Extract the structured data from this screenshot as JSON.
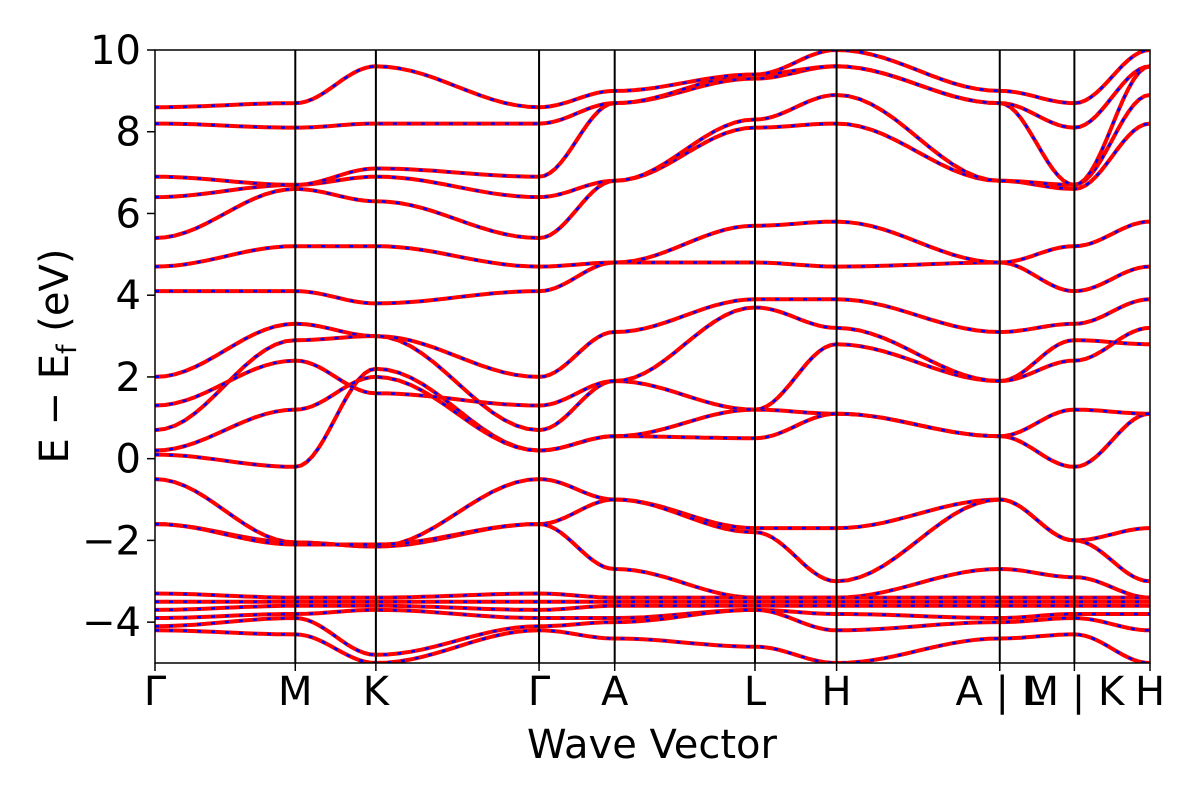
{
  "chart_data": {
    "type": "line",
    "title": "",
    "xlabel": "Wave Vector",
    "ylabel_main": "E − E",
    "ylabel_sub": "f",
    "ylabel_unit": " (eV)",
    "ylim": [
      -5,
      10
    ],
    "yticks": [
      -4,
      -2,
      0,
      2,
      4,
      6,
      8,
      10
    ],
    "ytick_labels": [
      "−4",
      "−2",
      "0",
      "2",
      "4",
      "6",
      "8",
      "10"
    ],
    "xlim": [
      0,
      100
    ],
    "kpoints": [
      {
        "x": 0,
        "label": "Γ"
      },
      {
        "x": 14.1,
        "label": "M"
      },
      {
        "x": 22.2,
        "label": "K"
      },
      {
        "x": 38.6,
        "label": "Γ"
      },
      {
        "x": 46.2,
        "label": "A"
      },
      {
        "x": 60.3,
        "label": "L"
      },
      {
        "x": 68.5,
        "label": "H"
      },
      {
        "x": 84.9,
        "label": "A | L"
      },
      {
        "x": 92.4,
        "label": "M | K"
      },
      {
        "x": 100,
        "label": "H"
      }
    ],
    "colors": {
      "bands_solid": "#ff0000",
      "bands_dashed": "#0000ff",
      "kline": "#000000"
    },
    "series": [
      {
        "name": "",
        "x": [
          0,
          14.1,
          22.2,
          38.6,
          46.2,
          60.3,
          68.5,
          84.9,
          92.4,
          100
        ],
        "y": [
          -0.5,
          -2.05,
          -2.15,
          -0.5,
          -1.0,
          -1.7,
          -1.7,
          -1.0,
          -2.0,
          -1.7
        ]
      },
      {
        "x": [
          0,
          14.1,
          22.2,
          38.6,
          46.2,
          60.3,
          68.5,
          84.9,
          92.4,
          100
        ],
        "y": [
          -1.6,
          -2.05,
          -2.15,
          -1.6,
          -1.0,
          -1.8,
          -3.0,
          -1.0,
          -2.0,
          -3.0
        ]
      },
      {
        "x": [
          0,
          14.1,
          22.2,
          38.6,
          46.2,
          60.3,
          68.5,
          84.9,
          92.4,
          100
        ],
        "y": [
          -1.6,
          -2.1,
          -2.1,
          -1.6,
          -2.7,
          -3.4,
          -3.4,
          -2.7,
          -2.9,
          -3.4
        ]
      },
      {
        "x": [
          0,
          14.1,
          22.2,
          38.6,
          46.2,
          60.3,
          68.5,
          84.9,
          92.4,
          100
        ],
        "y": [
          0.1,
          -0.2,
          2.2,
          0.2,
          0.55,
          0.5,
          1.1,
          0.55,
          -0.2,
          1.1
        ]
      },
      {
        "x": [
          0,
          14.1,
          22.2,
          38.6,
          46.2,
          60.3,
          68.5,
          84.9,
          92.4,
          100
        ],
        "y": [
          0.2,
          1.2,
          2.0,
          0.2,
          0.55,
          1.2,
          1.1,
          0.55,
          1.2,
          1.1
        ]
      },
      {
        "x": [
          0,
          14.1,
          22.2,
          38.6,
          46.2,
          60.3,
          68.5,
          84.9,
          92.4,
          100
        ],
        "y": [
          0.7,
          2.9,
          3.0,
          0.7,
          1.9,
          1.2,
          2.8,
          1.9,
          2.9,
          2.8
        ]
      },
      {
        "x": [
          0,
          14.1,
          22.2,
          38.6,
          46.2,
          60.3,
          68.5,
          84.9,
          92.4,
          100
        ],
        "y": [
          1.3,
          2.4,
          1.6,
          1.3,
          1.9,
          3.7,
          3.2,
          1.9,
          2.4,
          3.2
        ]
      },
      {
        "x": [
          0,
          14.1,
          22.2,
          38.6,
          46.2,
          60.3,
          68.5,
          84.9,
          92.4,
          100
        ],
        "y": [
          2.0,
          3.3,
          3.0,
          2.0,
          3.1,
          3.9,
          3.9,
          3.1,
          3.3,
          3.9
        ]
      },
      {
        "x": [
          0,
          14.1,
          22.2,
          38.6,
          46.2,
          60.3,
          68.5,
          84.9,
          92.4,
          100
        ],
        "y": [
          4.1,
          4.1,
          3.8,
          4.1,
          4.8,
          4.8,
          4.7,
          4.8,
          4.1,
          4.7
        ]
      },
      {
        "x": [
          0,
          14.1,
          22.2,
          38.6,
          46.2,
          60.3,
          68.5,
          84.9,
          92.4,
          100
        ],
        "y": [
          4.7,
          5.2,
          5.2,
          4.7,
          4.8,
          5.7,
          5.8,
          4.8,
          5.2,
          5.8
        ]
      },
      {
        "x": [
          0,
          14.1,
          22.2,
          38.6,
          46.2,
          60.3,
          68.5,
          84.9,
          92.4,
          100
        ],
        "y": [
          5.4,
          6.6,
          6.3,
          5.4,
          6.8,
          8.1,
          8.2,
          6.8,
          6.6,
          8.2
        ]
      },
      {
        "x": [
          0,
          14.1,
          22.2,
          38.6,
          46.2,
          60.3,
          68.5,
          84.9,
          92.4,
          100
        ],
        "y": [
          6.4,
          6.7,
          6.9,
          6.4,
          6.8,
          8.3,
          8.9,
          6.8,
          6.7,
          8.9
        ]
      },
      {
        "x": [
          0,
          14.1,
          22.2,
          38.6,
          46.2,
          60.3,
          68.5,
          84.9,
          92.4,
          100
        ],
        "y": [
          6.9,
          6.7,
          7.1,
          6.9,
          8.7,
          9.3,
          9.6,
          8.7,
          6.7,
          9.6
        ]
      },
      {
        "x": [
          0,
          14.1,
          22.2,
          38.6,
          46.2,
          60.3,
          68.5,
          84.9,
          92.4,
          100
        ],
        "y": [
          8.2,
          8.1,
          8.2,
          8.2,
          8.7,
          9.4,
          9.6,
          8.7,
          8.1,
          9.6
        ]
      },
      {
        "x": [
          0,
          14.1,
          22.2,
          38.6,
          46.2,
          60.3,
          68.5,
          84.9,
          92.4,
          100
        ],
        "y": [
          8.6,
          8.7,
          9.6,
          8.6,
          9.0,
          9.4,
          10.0,
          9.0,
          8.7,
          10.0
        ]
      },
      {
        "x": [
          0,
          14.1,
          22.2,
          38.6,
          46.2,
          60.3,
          68.5,
          84.9,
          92.4,
          100
        ],
        "y": [
          -3.3,
          -3.4,
          -3.4,
          -3.3,
          -3.4,
          -3.4,
          -3.4,
          -3.4,
          -3.4,
          -3.4
        ]
      },
      {
        "x": [
          0,
          14.1,
          22.2,
          38.6,
          46.2,
          60.3,
          68.5,
          84.9,
          92.4,
          100
        ],
        "y": [
          -3.5,
          -3.5,
          -3.5,
          -3.5,
          -3.5,
          -3.5,
          -3.5,
          -3.5,
          -3.5,
          -3.5
        ]
      },
      {
        "x": [
          0,
          14.1,
          22.2,
          38.6,
          46.2,
          60.3,
          68.5,
          84.9,
          92.4,
          100
        ],
        "y": [
          -3.7,
          -3.6,
          -3.6,
          -3.7,
          -3.6,
          -3.6,
          -3.6,
          -3.6,
          -3.6,
          -3.6
        ]
      },
      {
        "x": [
          0,
          14.1,
          22.2,
          38.6,
          46.2,
          60.3,
          68.5,
          84.9,
          92.4,
          100
        ],
        "y": [
          -3.9,
          -3.8,
          -3.7,
          -3.9,
          -3.9,
          -3.7,
          -3.8,
          -3.9,
          -3.8,
          -3.8
        ]
      },
      {
        "x": [
          0,
          14.1,
          22.2,
          38.6,
          46.2,
          60.3,
          68.5,
          84.9,
          92.4,
          100
        ],
        "y": [
          -4.1,
          -3.9,
          -4.8,
          -4.1,
          -4.0,
          -3.7,
          -4.2,
          -4.0,
          -3.9,
          -4.2
        ]
      },
      {
        "x": [
          0,
          14.1,
          22.2,
          38.6,
          46.2,
          60.3,
          68.5,
          84.9,
          92.4,
          100
        ],
        "y": [
          -4.2,
          -4.3,
          -5.0,
          -4.2,
          -4.4,
          -4.6,
          -5.0,
          -4.4,
          -4.3,
          -5.0
        ]
      }
    ]
  }
}
